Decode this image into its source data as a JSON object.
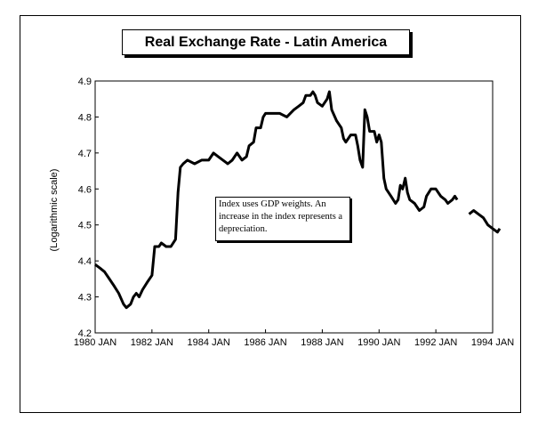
{
  "chart_data": {
    "type": "line",
    "title": "Real Exchange Rate - Latin America",
    "ylabel": "(Logarithmic scale)",
    "xlabel": "",
    "ylim": [
      4.2,
      4.9
    ],
    "xlim": [
      1980.0,
      1994.0
    ],
    "yticks": [
      4.2,
      4.3,
      4.4,
      4.5,
      4.6,
      4.7,
      4.8,
      4.9
    ],
    "ytick_labels": [
      "4.2",
      "4.3",
      "4.4",
      "4.5",
      "4.6",
      "4.7",
      "4.8",
      "4.9"
    ],
    "xticks": [
      1980,
      1982,
      1984,
      1986,
      1988,
      1990,
      1992,
      1994
    ],
    "xtick_labels": [
      "1980 JAN",
      "1982 JAN",
      "1984 JAN",
      "1986 JAN",
      "1988 JAN",
      "1990 JAN",
      "1992 JAN",
      "1994 JAN"
    ],
    "grid": false,
    "annotation": "Index uses GDP weights. An increase in the index represents a depreciation.",
    "series": [
      {
        "segments": [
          [
            [
              1980.0,
              4.39
            ],
            [
              1980.17,
              4.38
            ],
            [
              1980.33,
              4.37
            ],
            [
              1980.5,
              4.35
            ],
            [
              1980.67,
              4.33
            ],
            [
              1980.83,
              4.31
            ],
            [
              1981.0,
              4.28
            ],
            [
              1981.1,
              4.27
            ],
            [
              1981.25,
              4.28
            ],
            [
              1981.35,
              4.3
            ],
            [
              1981.45,
              4.31
            ],
            [
              1981.55,
              4.3
            ],
            [
              1981.67,
              4.32
            ],
            [
              1981.83,
              4.34
            ],
            [
              1982.0,
              4.36
            ],
            [
              1982.1,
              4.44
            ],
            [
              1982.25,
              4.44
            ],
            [
              1982.33,
              4.45
            ],
            [
              1982.5,
              4.44
            ],
            [
              1982.67,
              4.44
            ],
            [
              1982.83,
              4.46
            ],
            [
              1982.92,
              4.59
            ],
            [
              1983.0,
              4.66
            ],
            [
              1983.1,
              4.67
            ],
            [
              1983.25,
              4.68
            ],
            [
              1983.5,
              4.67
            ],
            [
              1983.75,
              4.68
            ],
            [
              1984.0,
              4.68
            ],
            [
              1984.17,
              4.7
            ],
            [
              1984.33,
              4.69
            ],
            [
              1984.5,
              4.68
            ],
            [
              1984.67,
              4.67
            ],
            [
              1984.83,
              4.68
            ],
            [
              1985.0,
              4.7
            ],
            [
              1985.17,
              4.68
            ],
            [
              1985.33,
              4.69
            ],
            [
              1985.42,
              4.72
            ],
            [
              1985.58,
              4.73
            ],
            [
              1985.67,
              4.77
            ],
            [
              1985.83,
              4.77
            ],
            [
              1985.92,
              4.8
            ],
            [
              1986.0,
              4.81
            ],
            [
              1986.25,
              4.81
            ],
            [
              1986.5,
              4.81
            ],
            [
              1986.75,
              4.8
            ],
            [
              1987.0,
              4.82
            ],
            [
              1987.17,
              4.83
            ],
            [
              1987.33,
              4.84
            ],
            [
              1987.42,
              4.86
            ],
            [
              1987.58,
              4.86
            ],
            [
              1987.67,
              4.87
            ],
            [
              1987.75,
              4.86
            ],
            [
              1987.83,
              4.84
            ],
            [
              1988.0,
              4.83
            ],
            [
              1988.17,
              4.85
            ],
            [
              1988.25,
              4.87
            ],
            [
              1988.33,
              4.82
            ],
            [
              1988.5,
              4.79
            ],
            [
              1988.67,
              4.77
            ],
            [
              1988.75,
              4.74
            ],
            [
              1988.83,
              4.73
            ],
            [
              1989.0,
              4.75
            ],
            [
              1989.17,
              4.75
            ],
            [
              1989.25,
              4.72
            ],
            [
              1989.33,
              4.68
            ],
            [
              1989.42,
              4.66
            ],
            [
              1989.5,
              4.82
            ],
            [
              1989.58,
              4.8
            ],
            [
              1989.67,
              4.76
            ],
            [
              1989.83,
              4.76
            ],
            [
              1989.92,
              4.73
            ],
            [
              1990.0,
              4.75
            ],
            [
              1990.08,
              4.73
            ],
            [
              1990.17,
              4.63
            ],
            [
              1990.25,
              4.6
            ],
            [
              1990.42,
              4.58
            ],
            [
              1990.58,
              4.56
            ],
            [
              1990.67,
              4.57
            ],
            [
              1990.75,
              4.61
            ],
            [
              1990.83,
              4.6
            ],
            [
              1990.92,
              4.63
            ],
            [
              1991.0,
              4.59
            ],
            [
              1991.08,
              4.57
            ],
            [
              1991.25,
              4.56
            ],
            [
              1991.42,
              4.54
            ],
            [
              1991.58,
              4.55
            ],
            [
              1991.67,
              4.58
            ],
            [
              1991.83,
              4.6
            ],
            [
              1992.0,
              4.6
            ],
            [
              1992.17,
              4.58
            ],
            [
              1992.33,
              4.57
            ],
            [
              1992.42,
              4.56
            ],
            [
              1992.58,
              4.57
            ],
            [
              1992.67,
              4.58
            ],
            [
              1992.75,
              4.57
            ]
          ],
          [
            [
              1993.17,
              4.53
            ],
            [
              1993.33,
              4.54
            ],
            [
              1993.5,
              4.53
            ],
            [
              1993.67,
              4.52
            ],
            [
              1993.83,
              4.5
            ],
            [
              1994.0,
              4.49
            ],
            [
              1994.17,
              4.48
            ],
            [
              1994.25,
              4.49
            ]
          ]
        ]
      }
    ]
  }
}
